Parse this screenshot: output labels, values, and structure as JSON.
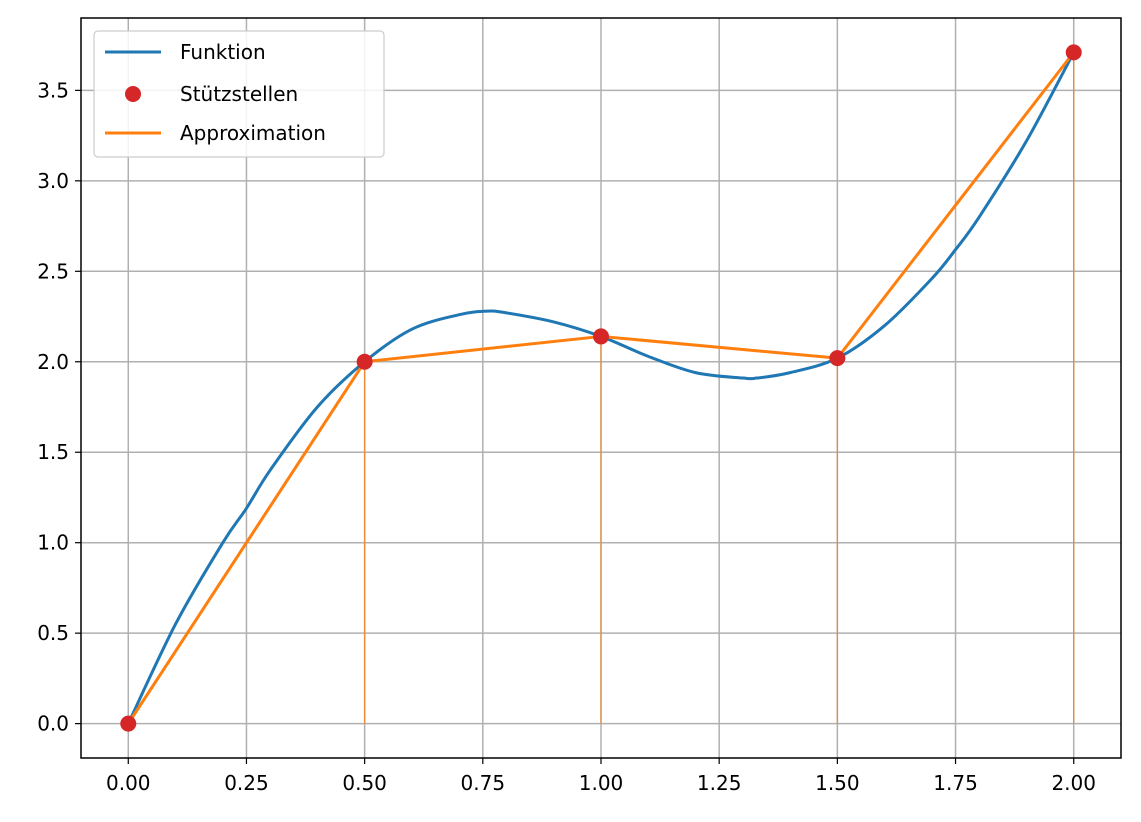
{
  "chart_data": {
    "type": "line",
    "title": "",
    "xlabel": "",
    "ylabel": "",
    "xlim": [
      -0.1,
      2.1
    ],
    "ylim": [
      -0.19,
      3.9
    ],
    "grid": true,
    "legend_position": "top-left",
    "x_ticks": [
      "0.00",
      "0.25",
      "0.50",
      "0.75",
      "1.00",
      "1.25",
      "1.50",
      "1.75",
      "2.00"
    ],
    "y_ticks": [
      "0.0",
      "0.5",
      "1.0",
      "1.5",
      "2.0",
      "2.5",
      "3.0",
      "3.5"
    ],
    "series": [
      {
        "name": "Funktion",
        "kind": "line",
        "color": "#1f77b4",
        "x": [
          0.0,
          0.1,
          0.2,
          0.25,
          0.3,
          0.4,
          0.5,
          0.6,
          0.7,
          0.76,
          0.8,
          0.9,
          1.0,
          1.1,
          1.2,
          1.3,
          1.33,
          1.4,
          1.5,
          1.6,
          1.7,
          1.75,
          1.8,
          1.9,
          2.0
        ],
        "y": [
          0.0,
          0.55,
          1.0,
          1.19,
          1.4,
          1.75,
          2.0,
          2.18,
          2.26,
          2.28,
          2.27,
          2.22,
          2.14,
          2.03,
          1.94,
          1.91,
          1.91,
          1.94,
          2.02,
          2.2,
          2.46,
          2.62,
          2.8,
          3.22,
          3.71
        ]
      },
      {
        "name": "Stützstellen",
        "kind": "scatter",
        "color": "#d62728",
        "x": [
          0.0,
          0.5,
          1.0,
          1.5,
          2.0
        ],
        "y": [
          0.0,
          2.0,
          2.14,
          2.02,
          3.71
        ]
      },
      {
        "name": "Approximation",
        "kind": "line",
        "color": "#ff7f0e",
        "x": [
          0.0,
          0.5,
          1.0,
          1.5,
          2.0
        ],
        "y": [
          0.0,
          2.0,
          2.14,
          2.02,
          3.71
        ]
      }
    ],
    "stems": {
      "color": "#ff7f0e",
      "x": [
        0.5,
        1.0,
        1.5,
        2.0
      ],
      "y": [
        2.0,
        2.14,
        2.02,
        3.71
      ]
    }
  }
}
